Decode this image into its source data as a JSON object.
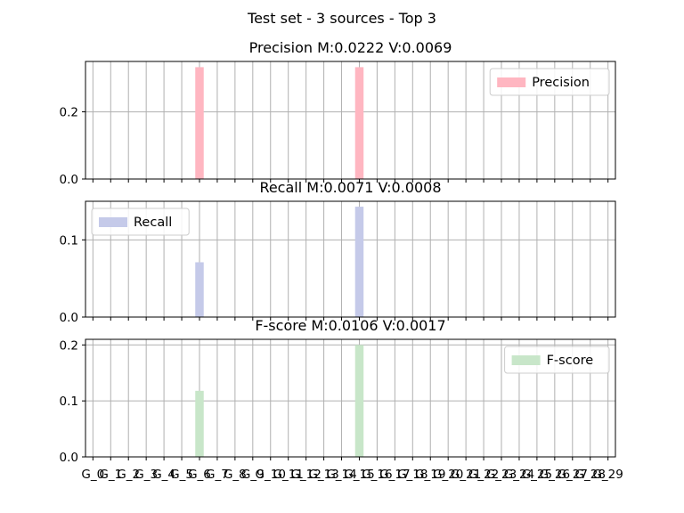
{
  "figure": {
    "suptitle": "Test set - 3 sources - Top 3"
  },
  "chart_data": [
    {
      "type": "bar",
      "title": "Precision M:0.0222 V:0.0069",
      "categories": [
        "G_0",
        "G_1",
        "G_2",
        "G_3",
        "G_4",
        "G_5",
        "G_6",
        "G_7",
        "G_8",
        "G_9",
        "G_10",
        "G_11",
        "G_12",
        "G_13",
        "G_14",
        "G_15",
        "G_16",
        "G_17",
        "G_18",
        "G_19",
        "G_20",
        "G_21",
        "G_22",
        "G_23",
        "G_24",
        "G_25",
        "G_26",
        "G_27",
        "G_28",
        "G_29"
      ],
      "series": [
        {
          "name": "Precision",
          "color": "#ffb6c1",
          "values": [
            0,
            0,
            0,
            0,
            0,
            0,
            0.333,
            0,
            0,
            0,
            0,
            0,
            0,
            0,
            0,
            0.333,
            0,
            0,
            0,
            0,
            0,
            0,
            0,
            0,
            0,
            0,
            0,
            0,
            0,
            0
          ]
        }
      ],
      "ylim": [
        0,
        0.35
      ],
      "yticks": [
        {
          "value": 0,
          "label": "0.0"
        },
        {
          "value": 0.2,
          "label": "0.2"
        }
      ],
      "grid": true,
      "legend": "upper right"
    },
    {
      "type": "bar",
      "title": "Recall M:0.0071 V:0.0008",
      "categories": [
        "G_0",
        "G_1",
        "G_2",
        "G_3",
        "G_4",
        "G_5",
        "G_6",
        "G_7",
        "G_8",
        "G_9",
        "G_10",
        "G_11",
        "G_12",
        "G_13",
        "G_14",
        "G_15",
        "G_16",
        "G_17",
        "G_18",
        "G_19",
        "G_20",
        "G_21",
        "G_22",
        "G_23",
        "G_24",
        "G_25",
        "G_26",
        "G_27",
        "G_28",
        "G_29"
      ],
      "series": [
        {
          "name": "Recall",
          "color": "#c5cae9",
          "values": [
            0,
            0,
            0,
            0,
            0,
            0,
            0.071,
            0,
            0,
            0,
            0,
            0,
            0,
            0,
            0,
            0.143,
            0,
            0,
            0,
            0,
            0,
            0,
            0,
            0,
            0,
            0,
            0,
            0,
            0,
            0
          ]
        }
      ],
      "ylim": [
        0,
        0.15
      ],
      "yticks": [
        {
          "value": 0,
          "label": "0.0"
        },
        {
          "value": 0.1,
          "label": "0.1"
        }
      ],
      "grid": true,
      "legend": "upper left"
    },
    {
      "type": "bar",
      "title": "F-score M:0.0106 V:0.0017",
      "categories": [
        "G_0",
        "G_1",
        "G_2",
        "G_3",
        "G_4",
        "G_5",
        "G_6",
        "G_7",
        "G_8",
        "G_9",
        "G_10",
        "G_11",
        "G_12",
        "G_13",
        "G_14",
        "G_15",
        "G_16",
        "G_17",
        "G_18",
        "G_19",
        "G_20",
        "G_21",
        "G_22",
        "G_23",
        "G_24",
        "G_25",
        "G_26",
        "G_27",
        "G_28",
        "G_29"
      ],
      "series": [
        {
          "name": "F-score",
          "color": "#c8e6c9",
          "values": [
            0,
            0,
            0,
            0,
            0,
            0,
            0.118,
            0,
            0,
            0,
            0,
            0,
            0,
            0,
            0,
            0.2,
            0,
            0,
            0,
            0,
            0,
            0,
            0,
            0,
            0,
            0,
            0,
            0,
            0,
            0
          ]
        }
      ],
      "ylim": [
        0,
        0.21
      ],
      "yticks": [
        {
          "value": 0,
          "label": "0.0"
        },
        {
          "value": 0.1,
          "label": "0.1"
        },
        {
          "value": 0.2,
          "label": "0.2"
        }
      ],
      "grid": true,
      "legend": "upper right",
      "xtick_labels": true
    }
  ]
}
